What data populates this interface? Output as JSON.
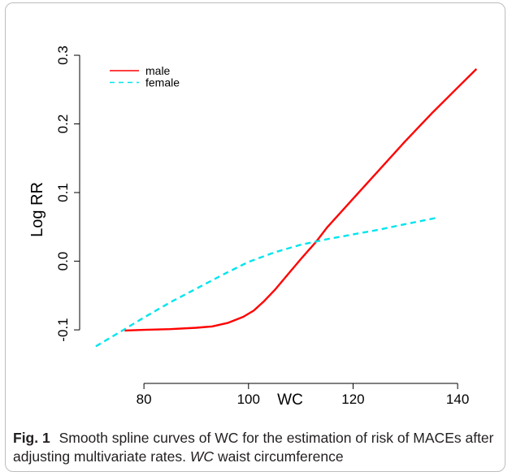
{
  "chart_data": {
    "type": "line",
    "title": "",
    "xlabel": "WC",
    "ylabel": "Log RR",
    "xlim": [
      67.7,
      147.6
    ],
    "ylim": [
      -0.178,
      0.345
    ],
    "x_ticks": [
      80,
      100,
      120,
      140
    ],
    "y_ticks": [
      -0.1,
      0.0,
      0.1,
      0.2,
      0.3
    ],
    "x_tick_labels": [
      "80",
      "100",
      "120",
      "140"
    ],
    "y_tick_labels": [
      "-0.1",
      "0.0",
      "0.1",
      "0.2",
      "0.3"
    ],
    "grid": false,
    "legend_position": "top-left",
    "series": [
      {
        "name": "male",
        "color": "#ff0000",
        "style": "solid",
        "points": [
          [
            76.3,
            -0.101
          ],
          [
            80,
            -0.1
          ],
          [
            85,
            -0.099
          ],
          [
            90,
            -0.097
          ],
          [
            93,
            -0.095
          ],
          [
            96,
            -0.09
          ],
          [
            99,
            -0.081
          ],
          [
            101,
            -0.072
          ],
          [
            103,
            -0.058
          ],
          [
            105,
            -0.042
          ],
          [
            107,
            -0.024
          ],
          [
            110,
            0.003
          ],
          [
            113,
            0.029
          ],
          [
            115,
            0.049
          ],
          [
            120,
            0.091
          ],
          [
            125,
            0.133
          ],
          [
            130,
            0.175
          ],
          [
            135,
            0.215
          ],
          [
            140,
            0.253
          ],
          [
            143.6,
            0.28
          ]
        ]
      },
      {
        "name": "female",
        "color": "#00e5ee",
        "style": "dashed",
        "points": [
          [
            70.8,
            -0.124
          ],
          [
            75,
            -0.105
          ],
          [
            80,
            -0.082
          ],
          [
            85,
            -0.06
          ],
          [
            90,
            -0.04
          ],
          [
            95,
            -0.02
          ],
          [
            100,
            -0.001
          ],
          [
            105,
            0.013
          ],
          [
            110,
            0.024
          ],
          [
            115,
            0.032
          ],
          [
            120,
            0.039
          ],
          [
            125,
            0.046
          ],
          [
            130,
            0.054
          ],
          [
            135.9,
            0.063
          ]
        ]
      }
    ]
  },
  "caption": {
    "label": "Fig. 1",
    "text_before": "Smooth spline curves of WC for the estimation of risk of MACEs after adjusting multivariate rates.",
    "abbr": "WC",
    "text_after": "waist circumference"
  }
}
